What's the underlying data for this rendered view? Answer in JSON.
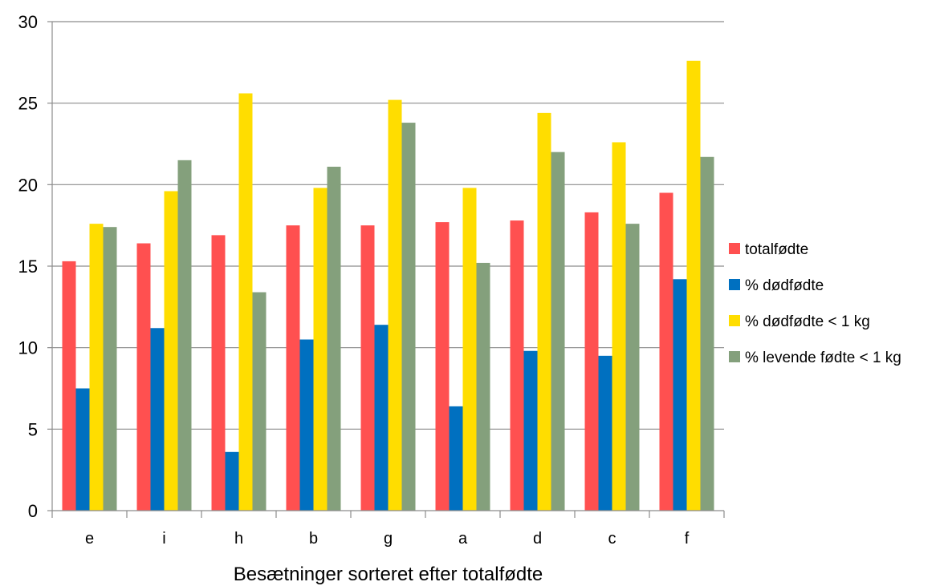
{
  "chart_data": {
    "type": "bar",
    "title": "",
    "xlabel": "Besætninger sorteret efter totalfødte",
    "ylabel": "",
    "ylim": [
      0,
      30
    ],
    "yticks": [
      0,
      5,
      10,
      15,
      20,
      25,
      30
    ],
    "grid": true,
    "legend_position": "right",
    "categories": [
      "e",
      "i",
      "h",
      "b",
      "g",
      "a",
      "d",
      "c",
      "f"
    ],
    "series": [
      {
        "name": "totalfødte",
        "color": "#ff5050",
        "values": [
          15.3,
          16.4,
          16.9,
          17.5,
          17.5,
          17.7,
          17.8,
          18.3,
          19.5
        ]
      },
      {
        "name": "% dødfødte",
        "color": "#0070c0",
        "values": [
          7.5,
          11.2,
          3.6,
          10.5,
          11.4,
          6.4,
          9.8,
          9.5,
          14.2
        ]
      },
      {
        "name": "% dødfødte < 1 kg",
        "color": "#ffdd00",
        "values": [
          17.6,
          19.6,
          25.6,
          19.8,
          25.2,
          19.8,
          24.4,
          22.6,
          27.6
        ]
      },
      {
        "name": "% levende fødte < 1 kg",
        "color": "#84a07c",
        "values": [
          17.4,
          21.5,
          13.4,
          21.1,
          23.8,
          15.2,
          22.0,
          17.6,
          21.7
        ]
      }
    ]
  }
}
